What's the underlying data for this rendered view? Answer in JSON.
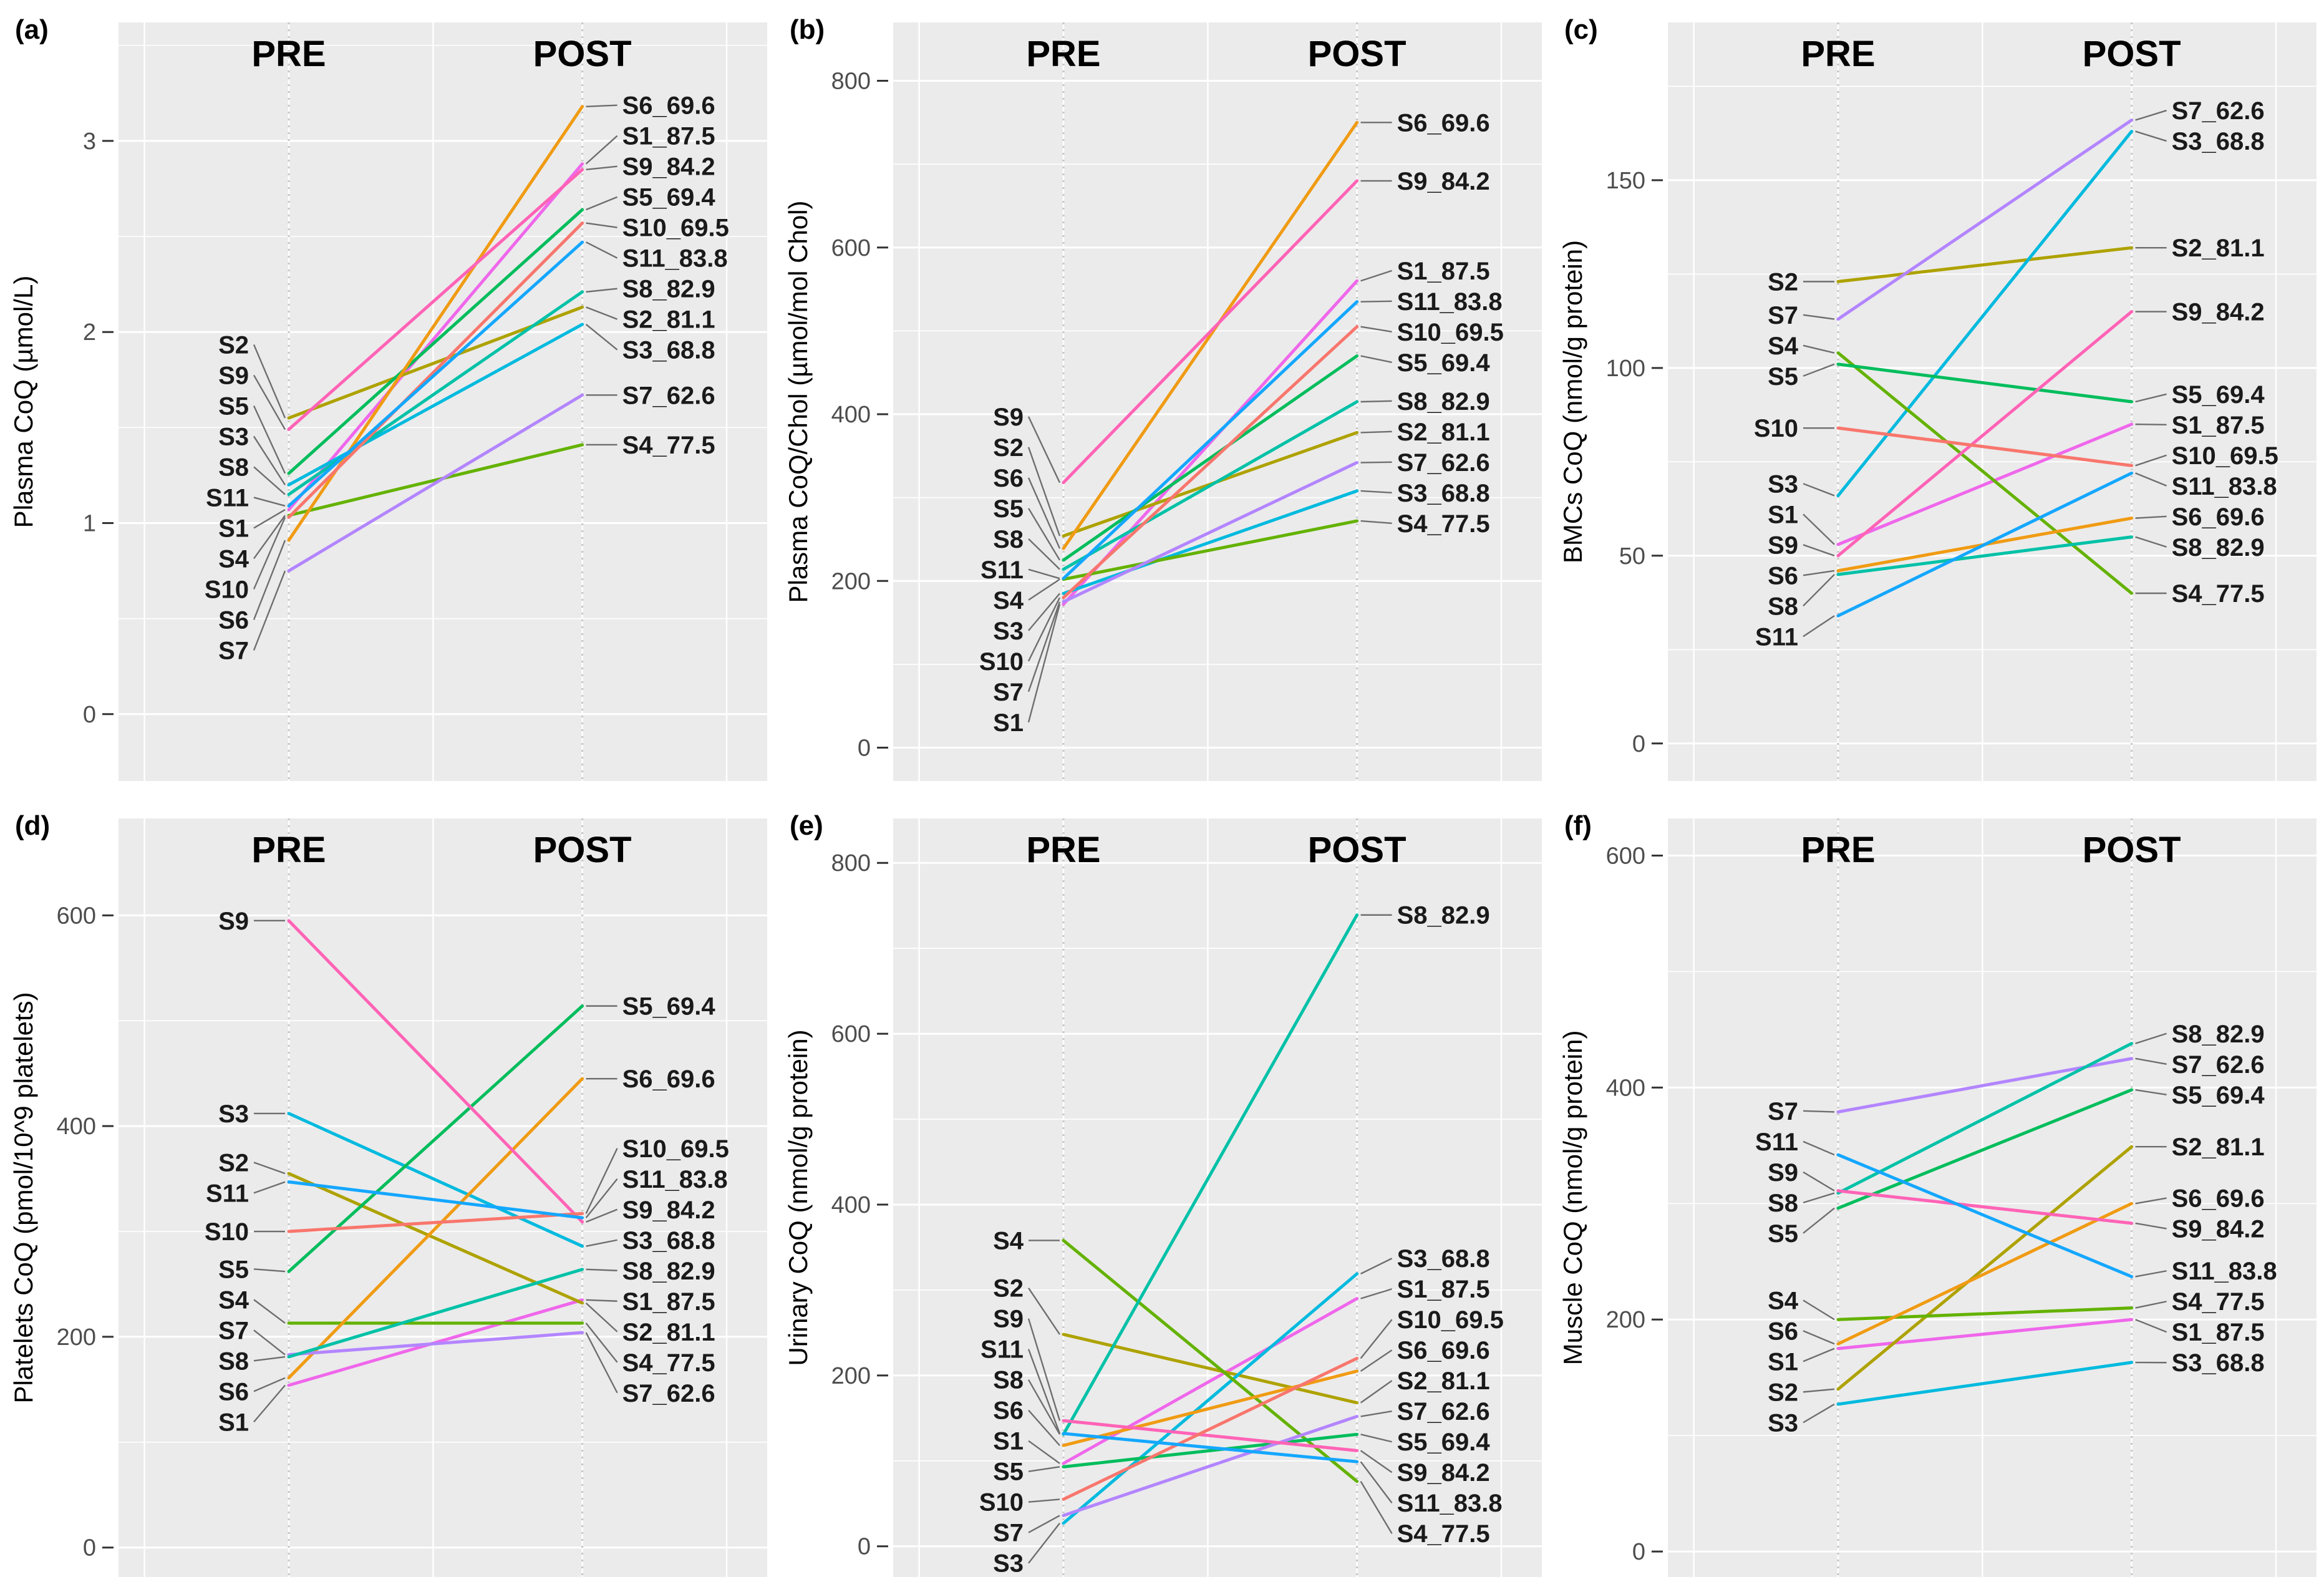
{
  "figure": {
    "columns": {
      "pre": "PRE",
      "post": "POST"
    },
    "panel_background": "#EBEBEB",
    "gridline_color": "#FFFFFF",
    "dotted_guide_color": "#C9C9C9",
    "leader_color": "#6E6E6E"
  },
  "subject_colors": {
    "S1": "#EF67EB",
    "S2": "#AEA200",
    "S3": "#00BADE",
    "S4": "#64B200",
    "S5": "#00BD5C",
    "S6": "#F09B13",
    "S7": "#B385FF",
    "S8": "#00C1A7",
    "S9": "#FF63B6",
    "S10": "#F8766D",
    "S11": "#14A7FF"
  },
  "chart_data": [
    {
      "id": "a",
      "letter": "(a)",
      "type": "line",
      "title": "",
      "xlabel": "",
      "ylabel": "Plasma CoQ (µmol/L)",
      "columns": [
        "PRE",
        "POST"
      ],
      "yticks": [
        0,
        1,
        2,
        3
      ],
      "ylim": [
        -0.35,
        3.62
      ],
      "series": [
        {
          "name": "S1",
          "pre": 1.07,
          "post": 2.88,
          "label_pre": "S1",
          "label_post": "S1_87.5"
        },
        {
          "name": "S2",
          "pre": 1.55,
          "post": 2.13,
          "label_pre": "S2",
          "label_post": "S2_81.1"
        },
        {
          "name": "S3",
          "pre": 1.2,
          "post": 2.04,
          "label_pre": "S3",
          "label_post": "S3_68.8"
        },
        {
          "name": "S4",
          "pre": 1.04,
          "post": 1.41,
          "label_pre": "S4",
          "label_post": "S4_77.5"
        },
        {
          "name": "S5",
          "pre": 1.26,
          "post": 2.64,
          "label_pre": "S5",
          "label_post": "S5_69.4"
        },
        {
          "name": "S6",
          "pre": 0.91,
          "post": 3.18,
          "label_pre": "S6",
          "label_post": "S6_69.6"
        },
        {
          "name": "S7",
          "pre": 0.75,
          "post": 1.67,
          "label_pre": "S7",
          "label_post": "S7_62.6"
        },
        {
          "name": "S8",
          "pre": 1.15,
          "post": 2.21,
          "label_pre": "S8",
          "label_post": "S8_82.9"
        },
        {
          "name": "S9",
          "pre": 1.49,
          "post": 2.85,
          "label_pre": "S9",
          "label_post": "S9_84.2"
        },
        {
          "name": "S10",
          "pre": 1.03,
          "post": 2.57,
          "label_pre": "S10",
          "label_post": "S10_69.5"
        },
        {
          "name": "S11",
          "pre": 1.09,
          "post": 2.47,
          "label_pre": "S11",
          "label_post": "S11_83.8"
        }
      ]
    },
    {
      "id": "b",
      "letter": "(b)",
      "type": "line",
      "title": "",
      "xlabel": "",
      "ylabel": "Plasma CoQ/Chol (µmol/mol Chol)",
      "columns": [
        "PRE",
        "POST"
      ],
      "yticks": [
        0,
        200,
        400,
        600,
        800
      ],
      "ylim": [
        -40,
        870
      ],
      "series": [
        {
          "name": "S1",
          "pre": 172,
          "post": 560,
          "label_pre": "S1",
          "label_post": "S1_87.5"
        },
        {
          "name": "S2",
          "pre": 254,
          "post": 378,
          "label_pre": "S2",
          "label_post": "S2_81.1"
        },
        {
          "name": "S3",
          "pre": 185,
          "post": 308,
          "label_pre": "S3",
          "label_post": "S3_68.8"
        },
        {
          "name": "S4",
          "pre": 202,
          "post": 272,
          "label_pre": "S4",
          "label_post": "S4_77.5"
        },
        {
          "name": "S5",
          "pre": 225,
          "post": 470,
          "label_pre": "S5",
          "label_post": "S5_69.4"
        },
        {
          "name": "S6",
          "pre": 239,
          "post": 750,
          "label_pre": "S6",
          "label_post": "S6_69.6"
        },
        {
          "name": "S7",
          "pre": 175,
          "post": 342,
          "label_pre": "S7",
          "label_post": "S7_62.6"
        },
        {
          "name": "S8",
          "pre": 214,
          "post": 415,
          "label_pre": "S8",
          "label_post": "S8_82.9"
        },
        {
          "name": "S9",
          "pre": 318,
          "post": 680,
          "label_pre": "S9",
          "label_post": "S9_84.2"
        },
        {
          "name": "S10",
          "pre": 180,
          "post": 505,
          "label_pre": "S10",
          "label_post": "S10_69.5"
        },
        {
          "name": "S11",
          "pre": 203,
          "post": 535,
          "label_pre": "S11",
          "label_post": "S11_83.8"
        }
      ]
    },
    {
      "id": "c",
      "letter": "(c)",
      "type": "line",
      "title": "",
      "xlabel": "",
      "ylabel": "BMCs CoQ (nmol/g protein)",
      "columns": [
        "PRE",
        "POST"
      ],
      "yticks": [
        0,
        50,
        100,
        150
      ],
      "ylim": [
        -10,
        192
      ],
      "series": [
        {
          "name": "S1",
          "pre": 53,
          "post": 85,
          "label_pre": "S1",
          "label_post": "S1_87.5"
        },
        {
          "name": "S2",
          "pre": 123,
          "post": 132,
          "label_pre": "S2",
          "label_post": "S2_81.1"
        },
        {
          "name": "S3",
          "pre": 66,
          "post": 163,
          "label_pre": "S3",
          "label_post": "S3_68.8"
        },
        {
          "name": "S4",
          "pre": 104,
          "post": 40,
          "label_pre": "S4",
          "label_post": "S4_77.5"
        },
        {
          "name": "S5",
          "pre": 101,
          "post": 91,
          "label_pre": "S5",
          "label_post": "S5_69.4"
        },
        {
          "name": "S6",
          "pre": 46,
          "post": 60,
          "label_pre": "S6",
          "label_post": "S6_69.6"
        },
        {
          "name": "S7",
          "pre": 113,
          "post": 166,
          "label_pre": "S7",
          "label_post": "S7_62.6"
        },
        {
          "name": "S8",
          "pre": 45,
          "post": 55,
          "label_pre": "S8",
          "label_post": "S8_82.9"
        },
        {
          "name": "S9",
          "pre": 50,
          "post": 115,
          "label_pre": "S9",
          "label_post": "S9_84.2"
        },
        {
          "name": "S10",
          "pre": 84,
          "post": 74,
          "label_pre": "S10",
          "label_post": "S10_69.5"
        },
        {
          "name": "S11",
          "pre": 34,
          "post": 72,
          "label_pre": "S11",
          "label_post": "S11_83.8"
        }
      ]
    },
    {
      "id": "d",
      "letter": "(d)",
      "type": "line",
      "title": "",
      "xlabel": "",
      "ylabel": "Platelets CoQ (pmol/10^9 platelets)",
      "columns": [
        "PRE",
        "POST"
      ],
      "yticks": [
        0,
        200,
        400,
        600
      ],
      "ylim": [
        -28,
        692
      ],
      "series": [
        {
          "name": "S1",
          "pre": 154,
          "post": 235,
          "label_pre": "S1",
          "label_post": "S1_87.5"
        },
        {
          "name": "S2",
          "pre": 355,
          "post": 232,
          "label_pre": "S2",
          "label_post": "S2_81.1"
        },
        {
          "name": "S3",
          "pre": 412,
          "post": 286,
          "label_pre": "S3",
          "label_post": "S3_68.8"
        },
        {
          "name": "S4",
          "pre": 213,
          "post": 213,
          "label_pre": "S4",
          "label_post": "S4_77.5"
        },
        {
          "name": "S5",
          "pre": 262,
          "post": 514,
          "label_pre": "S5",
          "label_post": "S5_69.4"
        },
        {
          "name": "S6",
          "pre": 161,
          "post": 445,
          "label_pre": "S6",
          "label_post": "S6_69.6"
        },
        {
          "name": "S7",
          "pre": 183,
          "post": 204,
          "label_pre": "S7",
          "label_post": "S7_62.6"
        },
        {
          "name": "S8",
          "pre": 181,
          "post": 264,
          "label_pre": "S8",
          "label_post": "S8_82.9"
        },
        {
          "name": "S9",
          "pre": 595,
          "post": 309,
          "label_pre": "S9",
          "label_post": "S9_84.2"
        },
        {
          "name": "S10",
          "pre": 300,
          "post": 317,
          "label_pre": "S10",
          "label_post": "S10_69.5"
        },
        {
          "name": "S11",
          "pre": 347,
          "post": 313,
          "label_pre": "S11",
          "label_post": "S11_83.8"
        }
      ]
    },
    {
      "id": "e",
      "letter": "(e)",
      "type": "line",
      "title": "",
      "xlabel": "",
      "ylabel": "Urinary CoQ (nmol/g protein)",
      "columns": [
        "PRE",
        "POST"
      ],
      "yticks": [
        0,
        200,
        400,
        600,
        800
      ],
      "ylim": [
        -36,
        852
      ],
      "series": [
        {
          "name": "S1",
          "pre": 97,
          "post": 290,
          "label_pre": "S1",
          "label_post": "S1_87.5"
        },
        {
          "name": "S2",
          "pre": 248,
          "post": 168,
          "label_pre": "S2",
          "label_post": "S2_81.1"
        },
        {
          "name": "S3",
          "pre": 27,
          "post": 319,
          "label_pre": "S3",
          "label_post": "S3_68.8"
        },
        {
          "name": "S4",
          "pre": 358,
          "post": 76,
          "label_pre": "S4",
          "label_post": "S4_77.5"
        },
        {
          "name": "S5",
          "pre": 93,
          "post": 131,
          "label_pre": "S5",
          "label_post": "S5_69.4"
        },
        {
          "name": "S6",
          "pre": 118,
          "post": 205,
          "label_pre": "S6",
          "label_post": "S6_69.6"
        },
        {
          "name": "S7",
          "pre": 36,
          "post": 152,
          "label_pre": "S7",
          "label_post": "S7_62.6"
        },
        {
          "name": "S8",
          "pre": 131,
          "post": 739,
          "label_pre": "S8",
          "label_post": "S8_82.9"
        },
        {
          "name": "S9",
          "pre": 147,
          "post": 112,
          "label_pre": "S9",
          "label_post": "S9_84.2"
        },
        {
          "name": "S10",
          "pre": 55,
          "post": 220,
          "label_pre": "S10",
          "label_post": "S10_69.5"
        },
        {
          "name": "S11",
          "pre": 132,
          "post": 99,
          "label_pre": "S11",
          "label_post": "S11_83.8"
        }
      ]
    },
    {
      "id": "f",
      "letter": "(f)",
      "type": "line",
      "title": "",
      "xlabel": "",
      "ylabel": "Muscle CoQ (nmol/g protein)",
      "columns": [
        "PRE",
        "POST"
      ],
      "yticks": [
        0,
        200,
        400,
        600
      ],
      "ylim": [
        -22,
        632
      ],
      "series": [
        {
          "name": "S1",
          "pre": 175,
          "post": 200,
          "label_pre": "S1",
          "label_post": "S1_87.5"
        },
        {
          "name": "S2",
          "pre": 140,
          "post": 349,
          "label_pre": "S2",
          "label_post": "S2_81.1"
        },
        {
          "name": "S3",
          "pre": 127,
          "post": 163,
          "label_pre": "S3",
          "label_post": "S3_68.8"
        },
        {
          "name": "S4",
          "pre": 200,
          "post": 210,
          "label_pre": "S4",
          "label_post": "S4_77.5"
        },
        {
          "name": "S5",
          "pre": 296,
          "post": 398,
          "label_pre": "S5",
          "label_post": "S5_69.4"
        },
        {
          "name": "S6",
          "pre": 179,
          "post": 300,
          "label_pre": "S6",
          "label_post": "S6_69.6"
        },
        {
          "name": "S7",
          "pre": 379,
          "post": 425,
          "label_pre": "S7",
          "label_post": "S7_62.6"
        },
        {
          "name": "S8",
          "pre": 309,
          "post": 438,
          "label_pre": "S8",
          "label_post": "S8_82.9"
        },
        {
          "name": "S9",
          "pre": 311,
          "post": 283,
          "label_pre": "S9",
          "label_post": "S9_84.2"
        },
        {
          "name": "S11",
          "pre": 342,
          "post": 237,
          "label_pre": "S11",
          "label_post": "S11_83.8"
        }
      ]
    }
  ]
}
